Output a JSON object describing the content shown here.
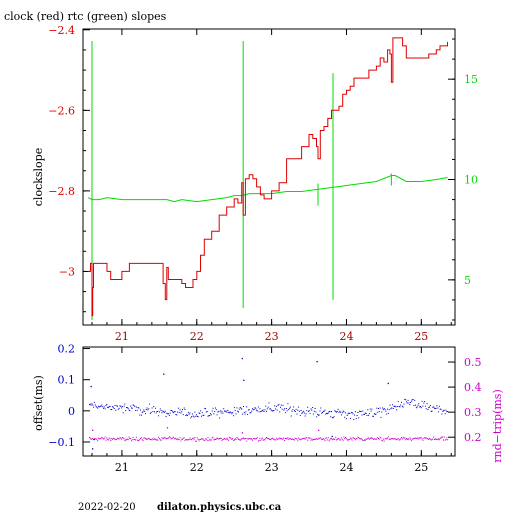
{
  "title": "clock (red) rtc (green) slopes",
  "footer": {
    "date": "2022-02-20",
    "host": "dilaton.physics.ubc.ca"
  },
  "colors": {
    "clock": "#dd0000",
    "rtc": "#00dd00",
    "offset": "#0000cc",
    "rndtrip": "#cc00cc",
    "frame": "#000000",
    "axis_x": "#990000"
  },
  "chart_data": [
    {
      "type": "line",
      "title": "clock (red) rtc (green) slopes",
      "ylabel": "clockslope",
      "xlim": [
        20.48,
        25.45
      ],
      "ylim": [
        -3.133,
        -2.398
      ],
      "xticks": [
        21,
        22,
        23,
        24,
        25
      ],
      "yticks": [
        -2.4,
        -2.6,
        -2.8,
        -3
      ],
      "ytick_labels": [
        "−2.4",
        "−2.6",
        "−2.8",
        "−3"
      ],
      "y2lim": [
        2.75,
        17.5
      ],
      "y2ticks": [
        5,
        10,
        15
      ],
      "y2tick_labels": [
        "5",
        "10",
        "15"
      ],
      "series": [
        {
          "name": "clock",
          "axis": "left",
          "x": [
            20.55,
            20.58,
            20.6,
            20.61,
            20.62,
            20.65,
            20.72,
            20.8,
            20.85,
            20.9,
            21.0,
            21.1,
            21.2,
            21.3,
            21.4,
            21.5,
            21.55,
            21.58,
            21.6,
            21.62,
            21.7,
            21.8,
            21.85,
            21.9,
            21.95,
            22.0,
            22.05,
            22.1,
            22.2,
            22.3,
            22.4,
            22.5,
            22.55,
            22.6,
            22.62,
            22.65,
            22.7,
            22.75,
            22.8,
            22.85,
            22.9,
            23.0,
            23.1,
            23.2,
            23.3,
            23.35,
            23.4,
            23.5,
            23.55,
            23.6,
            23.62,
            23.65,
            23.7,
            23.75,
            23.8,
            23.85,
            23.9,
            23.95,
            24.0,
            24.05,
            24.1,
            24.2,
            24.3,
            24.4,
            24.45,
            24.5,
            24.55,
            24.58,
            24.6,
            24.62,
            24.65,
            24.7,
            24.75,
            24.8,
            24.9,
            25.0,
            25.1,
            25.2,
            25.25,
            25.3,
            25.35
          ],
          "y": [
            -3.0,
            -2.98,
            -3.11,
            -3.04,
            -2.98,
            -2.98,
            -2.98,
            -3.0,
            -3.02,
            -3.02,
            -3.0,
            -2.98,
            -2.98,
            -2.98,
            -2.98,
            -2.98,
            -3.03,
            -3.07,
            -2.99,
            -3.02,
            -3.02,
            -3.03,
            -3.04,
            -3.04,
            -3.02,
            -3.0,
            -2.96,
            -2.92,
            -2.9,
            -2.86,
            -2.84,
            -2.82,
            -2.83,
            -2.78,
            -2.86,
            -2.77,
            -2.76,
            -2.77,
            -2.79,
            -2.81,
            -2.82,
            -2.8,
            -2.78,
            -2.72,
            -2.72,
            -2.72,
            -2.69,
            -2.66,
            -2.67,
            -2.69,
            -2.72,
            -2.65,
            -2.64,
            -2.62,
            -2.6,
            -2.6,
            -2.59,
            -2.56,
            -2.55,
            -2.54,
            -2.52,
            -2.52,
            -2.5,
            -2.49,
            -2.47,
            -2.48,
            -2.45,
            -2.46,
            -2.53,
            -2.42,
            -2.42,
            -2.42,
            -2.44,
            -2.47,
            -2.47,
            -2.47,
            -2.46,
            -2.45,
            -2.44,
            -2.44,
            -2.43
          ]
        },
        {
          "name": "rtc",
          "axis": "right",
          "x": [
            20.55,
            20.6,
            20.7,
            20.8,
            21.0,
            21.2,
            21.4,
            21.6,
            21.7,
            21.8,
            22.0,
            22.2,
            22.4,
            22.5,
            22.6,
            22.7,
            22.8,
            23.0,
            23.2,
            23.4,
            23.6,
            23.8,
            24.0,
            24.2,
            24.4,
            24.6,
            24.65,
            24.7,
            24.8,
            25.0,
            25.2,
            25.35
          ],
          "y": [
            9.1,
            9.0,
            9.0,
            9.1,
            9.0,
            9.0,
            9.0,
            9.0,
            8.9,
            9.0,
            8.9,
            9.0,
            9.1,
            9.2,
            9.2,
            9.3,
            9.3,
            9.3,
            9.4,
            9.4,
            9.5,
            9.6,
            9.7,
            9.8,
            9.9,
            10.2,
            10.2,
            10.1,
            9.9,
            9.9,
            10.0,
            10.1
          ],
          "spikes": [
            {
              "x": 20.6,
              "low": 3.0,
              "high": 16.9
            },
            {
              "x": 22.62,
              "low": 3.6,
              "high": 16.9
            },
            {
              "x": 23.62,
              "low": 8.7,
              "high": 9.8
            },
            {
              "x": 23.82,
              "low": 4.0,
              "high": 15.3
            },
            {
              "x": 24.6,
              "low": 9.7,
              "high": 10.3
            }
          ]
        }
      ]
    },
    {
      "type": "scatter",
      "ylabel": "offset(ms)",
      "y2label": "rnd−trip(ms)",
      "xlim": [
        20.48,
        25.45
      ],
      "ylim": [
        -0.145,
        0.205
      ],
      "xticks": [
        21,
        22,
        23,
        24,
        25
      ],
      "yticks": [
        0.2,
        0.1,
        0,
        -0.1
      ],
      "ytick_labels": [
        "0.2",
        "0.1",
        "0",
        "−0.1"
      ],
      "y2lim": [
        0.125,
        0.56
      ],
      "y2ticks": [
        0.2,
        0.3,
        0.4,
        0.5
      ],
      "y2tick_labels": [
        "0.2",
        "0.3",
        "0.4",
        "0.5"
      ],
      "series": [
        {
          "name": "offset",
          "axis": "left",
          "baseline": [
            [
              20.55,
              0.02
            ],
            [
              21.0,
              0.01
            ],
            [
              21.5,
              0.0
            ],
            [
              22.0,
              -0.01
            ],
            [
              22.5,
              0.0
            ],
            [
              23.0,
              0.01
            ],
            [
              23.5,
              0.0
            ],
            [
              24.0,
              -0.01
            ],
            [
              24.5,
              0.0
            ],
            [
              24.8,
              0.03
            ],
            [
              25.3,
              0.0
            ]
          ],
          "spread": 0.022,
          "outliers": [
            [
              20.58,
              0.08
            ],
            [
              20.6,
              -0.12
            ],
            [
              20.62,
              -0.09
            ],
            [
              21.55,
              0.12
            ],
            [
              22.6,
              0.17
            ],
            [
              22.62,
              0.1
            ],
            [
              23.6,
              0.16
            ],
            [
              23.8,
              -0.08
            ],
            [
              24.55,
              0.09
            ]
          ]
        },
        {
          "name": "rndtrip",
          "axis": "right",
          "baseline": [
            [
              20.55,
              0.195
            ],
            [
              25.35,
              0.195
            ]
          ],
          "spread": 0.012,
          "outliers": [
            [
              20.6,
              0.23
            ],
            [
              21.6,
              0.24
            ],
            [
              22.6,
              0.22
            ],
            [
              23.62,
              0.23
            ]
          ]
        }
      ]
    }
  ]
}
